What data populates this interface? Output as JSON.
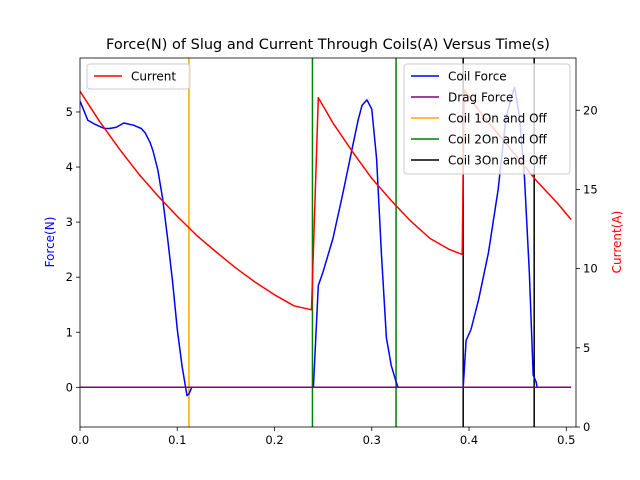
{
  "chart_data": {
    "type": "line",
    "title": "Force(N) of Slug and Current Through Coils(A) Versus Time(s)",
    "xlabel": "",
    "ylabel": "Force(N)",
    "ylabel_right": "Current(A)",
    "xlim": [
      0,
      0.51
    ],
    "ylim": [
      -0.72,
      5.98
    ],
    "ylim_right": [
      0,
      23.3
    ],
    "xticks": [
      "0.0",
      "0.1",
      "0.2",
      "0.3",
      "0.4",
      "0.5"
    ],
    "xtick_values": [
      0,
      0.1,
      0.2,
      0.3,
      0.4,
      0.5
    ],
    "yticks": [
      "0",
      "1",
      "2",
      "3",
      "4",
      "5"
    ],
    "ytick_values": [
      0,
      1,
      2,
      3,
      4,
      5
    ],
    "yticks_right": [
      "0",
      "5",
      "10",
      "15",
      "20"
    ],
    "ytick_values_right": [
      0,
      5,
      10,
      15,
      20
    ],
    "grid": false,
    "legend_left": {
      "placement": "upper-left",
      "entries": [
        "Current"
      ]
    },
    "legend_right": {
      "placement": "upper-right",
      "entries": [
        "Coil Force",
        "Drag Force",
        "Coil 1On and Off",
        "Coil 2On and Off",
        "Coil 3On and Off"
      ]
    },
    "series": [
      {
        "name": "Coil Force",
        "axis": "left",
        "color": "#0000ff",
        "x": [
          0,
          0.008,
          0.015,
          0.025,
          0.03,
          0.037,
          0.045,
          0.055,
          0.063,
          0.067,
          0.072,
          0.075,
          0.08,
          0.085,
          0.09,
          0.095,
          0.1,
          0.105,
          0.11,
          0.112,
          0.115,
          0.12,
          0.16,
          0.2,
          0.238,
          0.24,
          0.245,
          0.25,
          0.26,
          0.27,
          0.28,
          0.286,
          0.29,
          0.295,
          0.3,
          0.305,
          0.31,
          0.315,
          0.32,
          0.325,
          0.327,
          0.35,
          0.39,
          0.394,
          0.397,
          0.402,
          0.41,
          0.42,
          0.43,
          0.438,
          0.445,
          0.447,
          0.452,
          0.457,
          0.462,
          0.466,
          0.469,
          0.47,
          0.49,
          0.505
        ],
        "y": [
          5.2,
          4.85,
          4.78,
          4.7,
          4.7,
          4.72,
          4.8,
          4.76,
          4.7,
          4.62,
          4.45,
          4.3,
          3.95,
          3.42,
          2.72,
          1.95,
          1.05,
          0.38,
          -0.15,
          -0.12,
          0,
          0,
          0,
          0,
          0,
          0,
          1.85,
          2.1,
          2.7,
          3.5,
          4.35,
          4.85,
          5.12,
          5.22,
          5.05,
          4.15,
          2.4,
          0.9,
          0.4,
          0.1,
          0,
          0,
          0,
          0,
          0.85,
          1.05,
          1.6,
          2.45,
          3.6,
          4.9,
          5.35,
          5.45,
          4.9,
          3.8,
          2.1,
          0.22,
          0.1,
          0,
          0,
          0
        ]
      },
      {
        "name": "Drag Force",
        "axis": "left",
        "color": "#800080",
        "x": [
          0,
          0.505
        ],
        "y": [
          0,
          0
        ]
      },
      {
        "name": "Current",
        "axis": "right",
        "color": "#ff0000",
        "x": [
          0,
          0.02,
          0.04,
          0.06,
          0.08,
          0.1,
          0.12,
          0.14,
          0.16,
          0.18,
          0.2,
          0.22,
          0.238,
          0.245,
          0.26,
          0.28,
          0.3,
          0.32,
          0.34,
          0.36,
          0.38,
          0.393,
          0.395,
          0.41,
          0.43,
          0.45,
          0.47,
          0.49,
          0.505
        ],
        "y": [
          21.2,
          19.3,
          17.6,
          16.0,
          14.6,
          13.3,
          12.1,
          11.05,
          10.05,
          9.15,
          8.35,
          7.65,
          7.4,
          20.8,
          19.2,
          17.4,
          15.7,
          14.3,
          13.0,
          11.9,
          11.2,
          10.9,
          21.3,
          20.0,
          18.5,
          17.0,
          15.5,
          14.2,
          13.1
        ]
      }
    ],
    "vlines": [
      {
        "name": "Coil 1On and Off",
        "color": "#ffa500",
        "x": [
          0.112
        ]
      },
      {
        "name": "Coil 2On and Off",
        "color": "#008000",
        "x": [
          0.239,
          0.325
        ]
      },
      {
        "name": "Coil 3On and Off",
        "color": "#000000",
        "x": [
          0.394,
          0.467
        ]
      }
    ]
  }
}
